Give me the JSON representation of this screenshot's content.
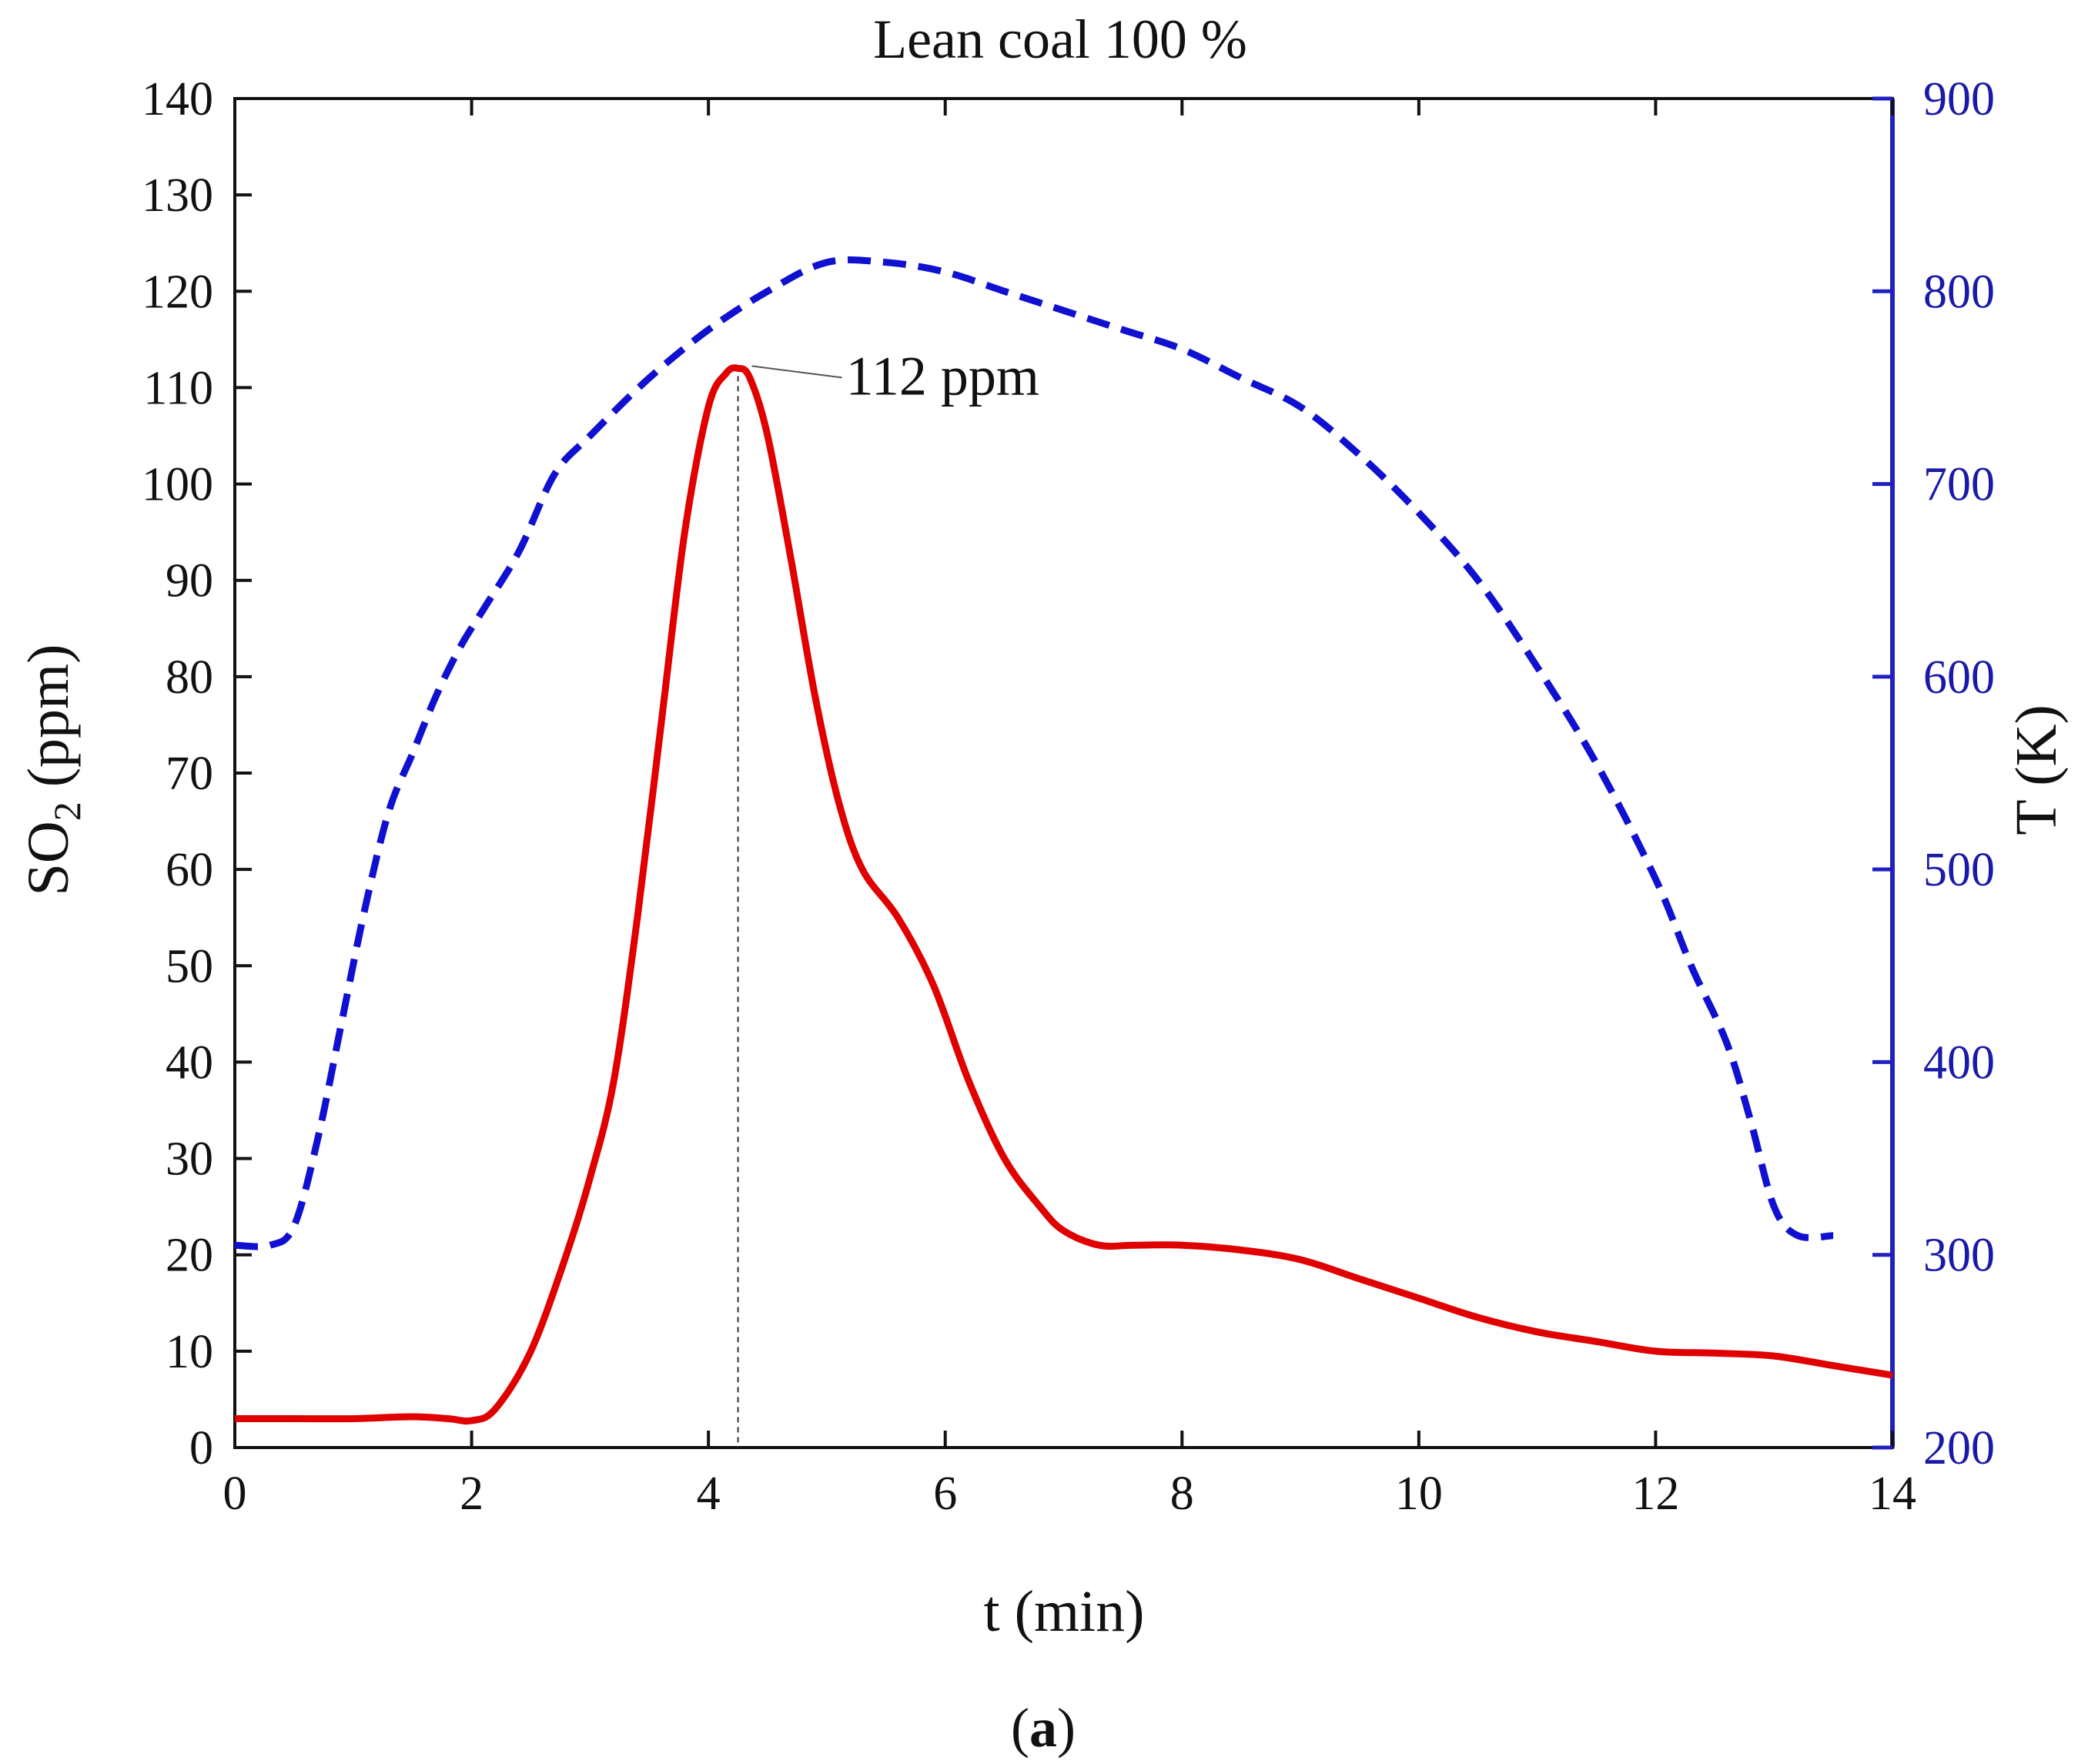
{
  "chart_data": {
    "type": "line",
    "title": "Lean coal 100 %",
    "caption_letter": "a",
    "xlabel": "t (min)",
    "ylabel_main": "SO",
    "ylabel_sub": "2",
    "ylabel_unit": " (ppm)",
    "ylabel_right": "T (K)",
    "xlim": [
      0,
      14
    ],
    "ylim": [
      0,
      140
    ],
    "ylim_right": [
      200,
      900
    ],
    "x_ticks": [
      "0",
      "2",
      "4",
      "6",
      "8",
      "10",
      "12",
      "14"
    ],
    "y_ticks": [
      "0",
      "10",
      "20",
      "30",
      "40",
      "50",
      "60",
      "70",
      "80",
      "90",
      "100",
      "110",
      "120",
      "130",
      "140"
    ],
    "y_ticks_right": [
      "200",
      "300",
      "400",
      "500",
      "600",
      "700",
      "800",
      "900"
    ],
    "series": [
      {
        "name": "SO2",
        "axis": "left",
        "color": "#e00000",
        "style": "solid",
        "x": [
          0,
          0.5,
          1.0,
          1.5,
          1.8,
          2.0,
          2.2,
          2.5,
          2.8,
          3.0,
          3.2,
          3.4,
          3.6,
          3.8,
          4.0,
          4.15,
          4.25,
          4.35,
          4.5,
          4.7,
          4.9,
          5.1,
          5.3,
          5.6,
          5.9,
          6.2,
          6.5,
          6.8,
          7.0,
          7.3,
          7.6,
          8.0,
          8.5,
          9.0,
          9.5,
          10.0,
          10.5,
          11.0,
          11.5,
          12.0,
          12.5,
          13.0,
          13.5,
          14.0
        ],
        "values": [
          3,
          3,
          3,
          3.2,
          3,
          2.8,
          4,
          10,
          20,
          28,
          38,
          55,
          75,
          95,
          108,
          111.5,
          112,
          111,
          105,
          92,
          78,
          67,
          60,
          55,
          48,
          38,
          30,
          25,
          22.5,
          21,
          21,
          21,
          20.5,
          19.5,
          17.5,
          15.5,
          13.5,
          12,
          11,
          10,
          9.8,
          9.5,
          8.5,
          7.5
        ]
      },
      {
        "name": "T",
        "axis": "right",
        "color": "#1010d0",
        "style": "dashed",
        "x": [
          0,
          0.3,
          0.5,
          0.7,
          0.9,
          1.1,
          1.3,
          1.5,
          1.7,
          1.9,
          2.1,
          2.4,
          2.7,
          3.0,
          3.5,
          4.0,
          4.5,
          5.0,
          5.5,
          6.0,
          6.5,
          7.0,
          7.5,
          8.0,
          8.5,
          9.0,
          9.5,
          10.0,
          10.5,
          11.0,
          11.5,
          12.0,
          12.3,
          12.6,
          12.8,
          13.0,
          13.2,
          13.5
        ],
        "values": [
          305,
          305,
          315,
          360,
          420,
          480,
          530,
          560,
          590,
          615,
          635,
          665,
          705,
          725,
          755,
          780,
          800,
          815,
          815,
          810,
          800,
          790,
          780,
          770,
          755,
          740,
          715,
          685,
          650,
          605,
          555,
          495,
          450,
          410,
          370,
          325,
          310,
          310
        ]
      }
    ],
    "annotations": [
      {
        "text": "112 ppm",
        "x": 4.25,
        "y": 112
      }
    ]
  }
}
